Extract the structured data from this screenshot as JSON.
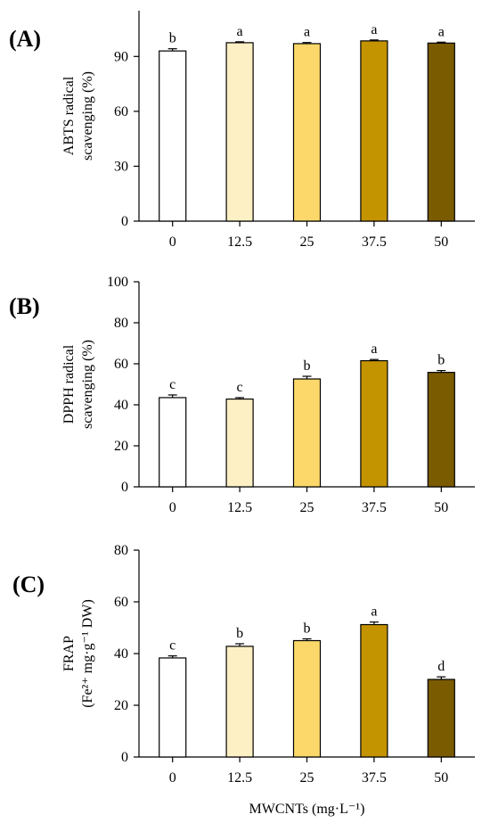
{
  "figure": {
    "xlabel": "MWCNTs (mg·L⁻¹)"
  },
  "chart_data": [
    {
      "type": "bar",
      "panel_label": "(A)",
      "ylabel_lines": [
        "ABTS radical",
        "scavenging (%)"
      ],
      "categories": [
        "0",
        "12.5",
        "25",
        "37.5",
        "50"
      ],
      "values": [
        93,
        97.5,
        97,
        98.5,
        97.3
      ],
      "errors": [
        1.2,
        0.5,
        0.6,
        0.5,
        0.5
      ],
      "letters": [
        "b",
        "a",
        "a",
        "a",
        "a"
      ],
      "ylim": [
        0,
        115
      ],
      "yticks": [
        0,
        30,
        60,
        90
      ],
      "colors": [
        "#ffffff",
        "#fdf0c4",
        "#fcd86a",
        "#c49300",
        "#7a5b00"
      ],
      "grid": false,
      "legend": "none"
    },
    {
      "type": "bar",
      "panel_label": "(B)",
      "ylabel_lines": [
        "DPPH radical",
        "scavenging (%)"
      ],
      "categories": [
        "0",
        "12.5",
        "25",
        "37.5",
        "50"
      ],
      "values": [
        43.5,
        42.8,
        52.6,
        61.5,
        55.8
      ],
      "errors": [
        1.3,
        0.7,
        1.3,
        0.6,
        0.9
      ],
      "letters": [
        "c",
        "c",
        "b",
        "a",
        "b"
      ],
      "ylim": [
        0,
        100
      ],
      "yticks": [
        0,
        20,
        40,
        60,
        80,
        100
      ],
      "colors": [
        "#ffffff",
        "#fdf0c4",
        "#fcd86a",
        "#c49300",
        "#7a5b00"
      ],
      "grid": false,
      "legend": "none"
    },
    {
      "type": "bar",
      "panel_label": "(C)",
      "ylabel_lines": [
        "FRAP",
        "(Fe²⁺ mg·g⁻¹ DW)"
      ],
      "categories": [
        "0",
        "12.5",
        "25",
        "37.5",
        "50"
      ],
      "values": [
        38.3,
        42.8,
        45.0,
        51.2,
        30.0
      ],
      "errors": [
        0.8,
        1.0,
        0.7,
        1.0,
        1.0
      ],
      "letters": [
        "c",
        "b",
        "b",
        "a",
        "d"
      ],
      "ylim": [
        0,
        80
      ],
      "yticks": [
        0,
        20,
        40,
        60,
        80
      ],
      "colors": [
        "#ffffff",
        "#fdf0c4",
        "#fcd86a",
        "#c49300",
        "#7a5b00"
      ],
      "grid": false,
      "legend": "none"
    }
  ]
}
